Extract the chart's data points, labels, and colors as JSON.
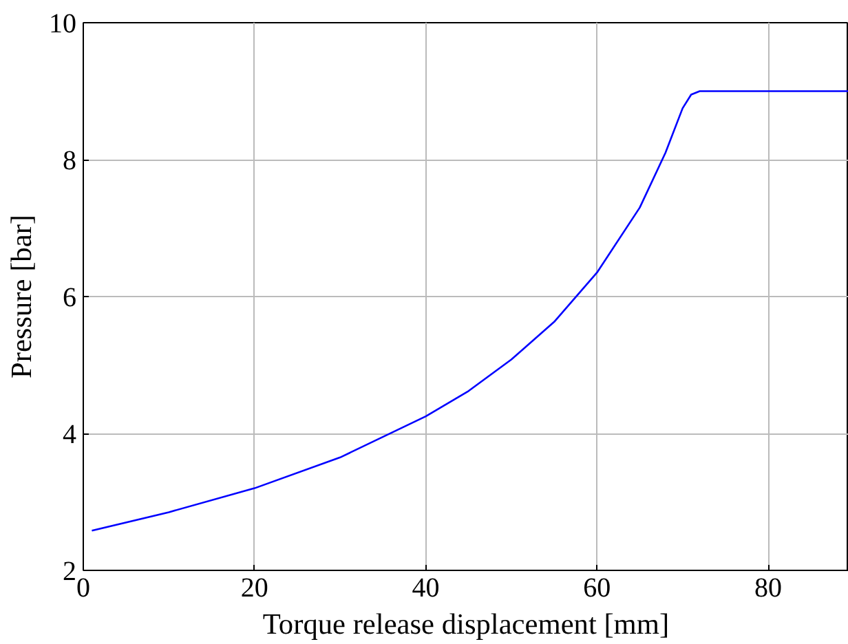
{
  "chart_data": {
    "type": "line",
    "xlabel": "Torque release displacement [mm]",
    "ylabel": "Pressure [bar]",
    "x": [
      1,
      10,
      20,
      30,
      40,
      45,
      50,
      55,
      60,
      65,
      68,
      70,
      71,
      72,
      89.4
    ],
    "series": [
      {
        "color": "#0000ff",
        "values": [
          2.58,
          2.85,
          3.2,
          3.65,
          4.25,
          4.62,
          5.08,
          5.63,
          6.35,
          7.3,
          8.1,
          8.75,
          8.95,
          9.0,
          9.0
        ]
      }
    ],
    "xlim": [
      0,
      89.4
    ],
    "ylim": [
      2,
      10
    ],
    "xticks": [
      0,
      20,
      40,
      60,
      80
    ],
    "yticks": [
      2,
      4,
      6,
      8,
      10
    ],
    "grid": true,
    "marker": "none",
    "line_style": "solid"
  }
}
